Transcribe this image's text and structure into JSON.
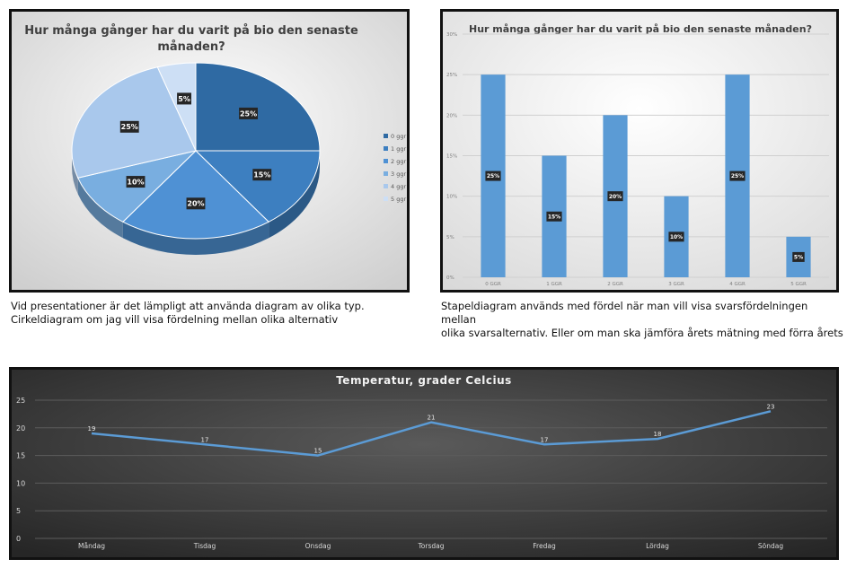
{
  "pie": {
    "chart_data": {
      "type": "pie",
      "title": "Hur många gånger har du varit på bio den senaste månaden?",
      "categories": [
        "0 ggr",
        "1 ggr",
        "2 ggr",
        "3 ggr",
        "4 ggr",
        "5 ggr"
      ],
      "values": [
        25,
        15,
        20,
        10,
        25,
        5
      ],
      "data_labels": [
        "25%",
        "15%",
        "20%",
        "10%",
        "25%",
        "5%"
      ],
      "legend_position": "right",
      "colors": [
        "#2f6aa3",
        "#3d7fc0",
        "#4f91d4",
        "#79aee0",
        "#a9c8ec",
        "#cddff5"
      ]
    },
    "caption_line1": "Vid presentationer är det lämpligt att använda diagram av olika typ.",
    "caption_line2": "Cirkeldiagram om jag vill visa fördelning mellan olika alternativ"
  },
  "bar": {
    "chart_data": {
      "type": "bar",
      "title": "Hur många gånger har du varit på bio den senaste månaden?",
      "categories": [
        "0 GGR",
        "1 GGR",
        "2 GGR",
        "3 GGR",
        "4 GGR",
        "5 GGR"
      ],
      "values": [
        25,
        15,
        20,
        10,
        25,
        5
      ],
      "data_labels": [
        "25%",
        "15%",
        "20%",
        "10%",
        "25%",
        "5%"
      ],
      "ylim": [
        0,
        30
      ],
      "yticks": [
        "0%",
        "5%",
        "10%",
        "15%",
        "20%",
        "25%",
        "30%"
      ],
      "grid": true,
      "color": "#5b9bd5"
    },
    "caption_line1": "Stapeldiagram används med fördel när man vill visa svarsfördelningen mellan",
    "caption_line2": "olika svarsalternativ. Eller om man ska jämföra årets mätning med förra årets"
  },
  "line": {
    "chart_data": {
      "type": "line",
      "title": "Temperatur, grader Celcius",
      "categories": [
        "Måndag",
        "Tisdag",
        "Onsdag",
        "Torsdag",
        "Fredag",
        "Lördag",
        "Söndag"
      ],
      "values": [
        19,
        17,
        15,
        21,
        17,
        18,
        23
      ],
      "ylim": [
        0,
        25
      ],
      "yticks": [
        "0",
        "5",
        "10",
        "15",
        "20",
        "25"
      ],
      "grid": true,
      "color": "#5b9bd5"
    }
  }
}
